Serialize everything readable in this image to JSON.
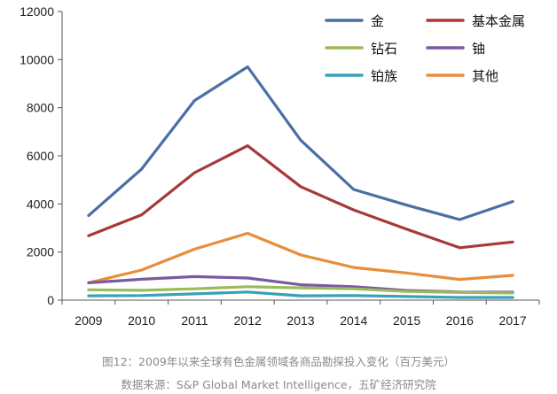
{
  "chart_data": {
    "type": "line",
    "categories": [
      "2009",
      "2010",
      "2011",
      "2012",
      "2013",
      "2014",
      "2015",
      "2016",
      "2017"
    ],
    "ylim": [
      0,
      12000
    ],
    "yticks": [
      0,
      2000,
      4000,
      6000,
      8000,
      10000,
      12000
    ],
    "ytick_labels": [
      "0",
      "2000",
      "4000",
      "6000",
      "8000",
      "10000",
      "12000"
    ],
    "series": [
      {
        "name": "金",
        "color": "#4a6fa5",
        "values": [
          3520,
          5450,
          8300,
          9700,
          6650,
          4600,
          3950,
          3350,
          4100
        ]
      },
      {
        "name": "基本金属",
        "color": "#a8393a",
        "values": [
          2680,
          3550,
          5300,
          6420,
          4720,
          3750,
          2950,
          2180,
          2420
        ]
      },
      {
        "name": "钻石",
        "color": "#9bbb59",
        "values": [
          430,
          410,
          470,
          560,
          510,
          470,
          360,
          320,
          300
        ]
      },
      {
        "name": "铀",
        "color": "#7a5a9e",
        "values": [
          720,
          870,
          980,
          920,
          640,
          560,
          400,
          340,
          330
        ]
      },
      {
        "name": "铂族",
        "color": "#3aa0b8",
        "values": [
          180,
          190,
          260,
          340,
          180,
          190,
          150,
          110,
          110
        ]
      },
      {
        "name": "其他",
        "color": "#e88d3a",
        "values": [
          720,
          1250,
          2120,
          2780,
          1880,
          1360,
          1130,
          860,
          1030
        ]
      }
    ]
  },
  "caption": {
    "figure": "图12：2009年以来全球有色金属领域各商品勘探投入变化（百万美元）",
    "source": "数据来源：S&P Global Market Intelligence，五矿经济研究院"
  }
}
